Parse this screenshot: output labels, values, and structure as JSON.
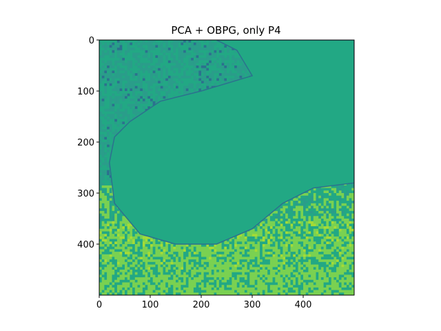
{
  "chart_data": {
    "type": "heatmap",
    "title": "PCA + OBPG, only P4",
    "xlabel": "",
    "ylabel": "",
    "xlim": [
      0,
      500
    ],
    "ylim": [
      500,
      0
    ],
    "xticks": [
      0,
      100,
      200,
      300,
      400
    ],
    "yticks": [
      0,
      100,
      200,
      300,
      400
    ],
    "colormap": "viridis",
    "palette": {
      "masked": "#22a884",
      "dark": "#2c718e",
      "mid": "#2a9d8a",
      "bright": "#7ad151",
      "highlight": "#a5db36"
    },
    "masked_region": {
      "description": "uniform teal water area (constant value)",
      "outline_points": [
        [
          230,
          0
        ],
        [
          270,
          20
        ],
        [
          300,
          70
        ],
        [
          200,
          100
        ],
        [
          120,
          120
        ],
        [
          60,
          160
        ],
        [
          30,
          190
        ],
        [
          20,
          240
        ],
        [
          30,
          320
        ],
        [
          80,
          380
        ],
        [
          150,
          400
        ],
        [
          230,
          400
        ],
        [
          300,
          370
        ],
        [
          360,
          320
        ],
        [
          420,
          290
        ],
        [
          500,
          280
        ],
        [
          500,
          0
        ]
      ]
    },
    "image_size": [
      500,
      500
    ]
  }
}
